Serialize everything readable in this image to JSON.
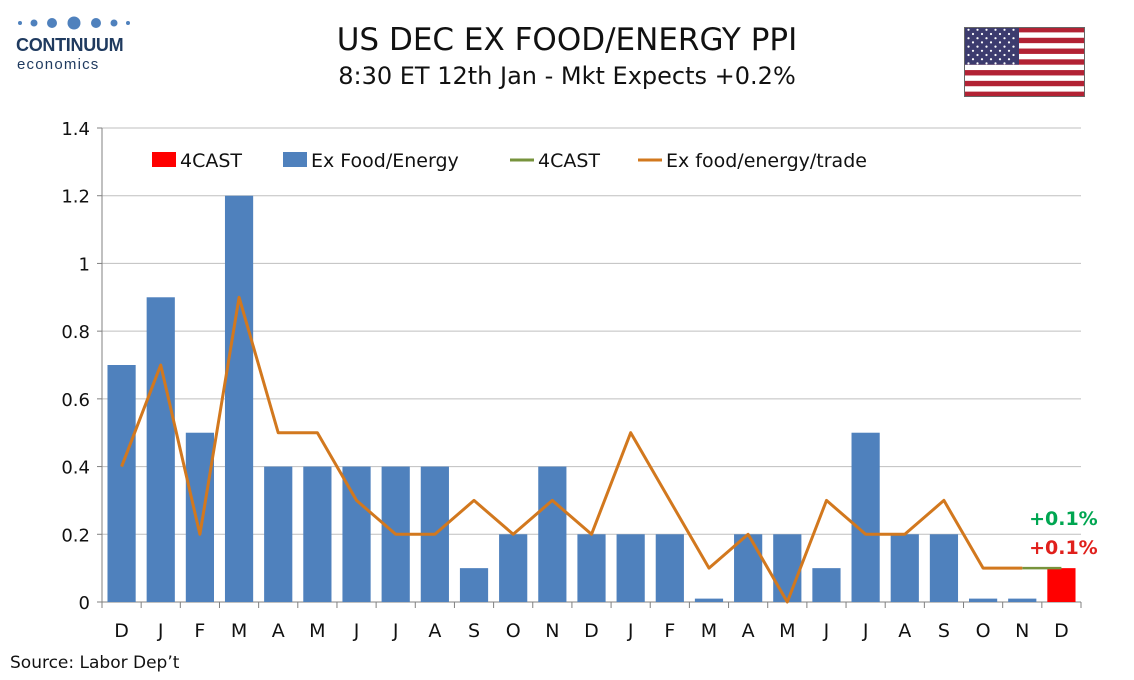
{
  "header": {
    "title": "US DEC EX FOOD/ENERGY PPI",
    "subtitle": "8:30 ET 12th Jan - Mkt Expects +0.2%"
  },
  "logo": {
    "brand": "CONTINUUM",
    "sub": "economics"
  },
  "source": "Source: Labor Dep’t",
  "colors": {
    "bar": "#4f81bd",
    "forecast_bar": "#ff0000",
    "trade_line": "#d2781e",
    "forecast_line": "#77933c",
    "gridline": "#bfbfbf",
    "forecast_label_green": "#00a651",
    "forecast_label_red": "#e0201c"
  },
  "chart_data": {
    "type": "bar",
    "categories": [
      "D",
      "J",
      "F",
      "M",
      "A",
      "M",
      "J",
      "J",
      "A",
      "S",
      "O",
      "N",
      "D",
      "J",
      "F",
      "M",
      "A",
      "M",
      "J",
      "J",
      "A",
      "S",
      "O",
      "N",
      "D"
    ],
    "ylim": [
      0,
      1.4
    ],
    "yticks": [
      "0",
      "0.2",
      "0.4",
      "0.6",
      "0.8",
      "1",
      "1.2",
      "1.4"
    ],
    "grid": true,
    "legend_position": "top",
    "series": [
      {
        "name": "4CAST",
        "kind": "bar",
        "values": [
          null,
          null,
          null,
          null,
          null,
          null,
          null,
          null,
          null,
          null,
          null,
          null,
          null,
          null,
          null,
          null,
          null,
          null,
          null,
          null,
          null,
          null,
          null,
          null,
          0.1
        ]
      },
      {
        "name": "Ex Food/Energy",
        "kind": "bar",
        "values": [
          0.7,
          0.9,
          0.5,
          1.2,
          0.4,
          0.4,
          0.4,
          0.4,
          0.4,
          0.1,
          0.2,
          0.4,
          0.2,
          0.2,
          0.2,
          0.01,
          0.2,
          0.2,
          0.1,
          0.5,
          0.2,
          0.2,
          0.01,
          0.01,
          null
        ]
      },
      {
        "name": "4CAST",
        "kind": "line",
        "values": [
          null,
          null,
          null,
          null,
          null,
          null,
          null,
          null,
          null,
          null,
          null,
          null,
          null,
          null,
          null,
          null,
          null,
          null,
          null,
          null,
          null,
          null,
          null,
          0.1,
          0.1
        ]
      },
      {
        "name": "Ex food/energy/trade",
        "kind": "line",
        "values": [
          0.4,
          0.7,
          0.2,
          0.9,
          0.5,
          0.5,
          0.3,
          0.2,
          0.2,
          0.3,
          0.2,
          0.3,
          0.2,
          0.5,
          0.3,
          0.1,
          0.2,
          0.0,
          0.3,
          0.2,
          0.2,
          0.3,
          0.1,
          0.1,
          null
        ]
      }
    ],
    "annotations": [
      {
        "text": "+0.1%",
        "color_key": "forecast_label_green"
      },
      {
        "text": "+0.1%",
        "color_key": "forecast_label_red"
      }
    ]
  }
}
